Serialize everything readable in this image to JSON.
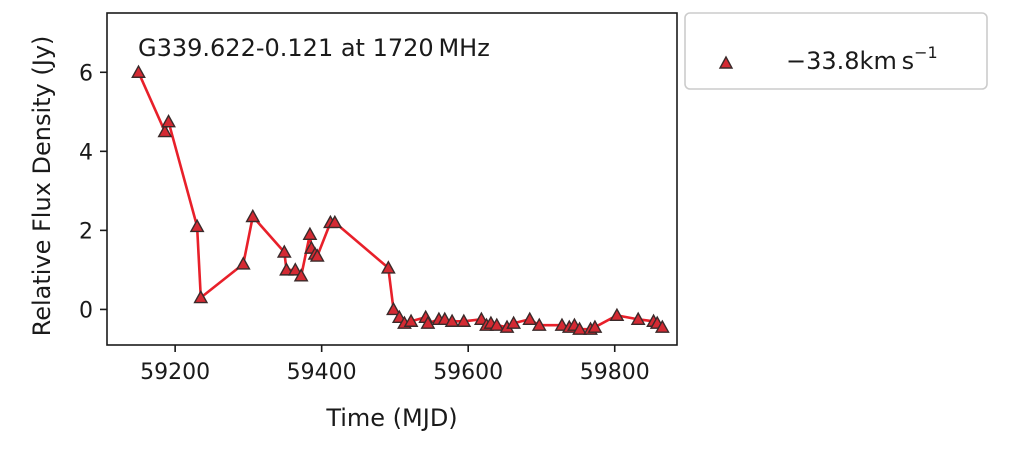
{
  "chart_data": {
    "type": "line",
    "title": "",
    "annotation": "G339.622-0.121 at 1720 MHz",
    "xlabel": "Time (MJD)",
    "ylabel": "Relative Flux Density (Jy)",
    "xlim": [
      59107,
      59885
    ],
    "ylim": [
      -0.9,
      7.5
    ],
    "xticks": [
      59200,
      59400,
      59600,
      59800
    ],
    "xtick_labels": [
      "59200",
      "59400",
      "59600",
      "59800"
    ],
    "yticks": [
      0,
      2,
      4,
      6
    ],
    "ytick_labels": [
      "0",
      "2",
      "4",
      "6"
    ],
    "grid": false,
    "legend_position": "outside-right-top",
    "series": [
      {
        "name": "−33.8km s⁻¹",
        "legend_main": "−33.8km s",
        "legend_sup": "−1",
        "marker": "triangle",
        "line_color": "#e8202a",
        "marker_fill": "#d42a33",
        "marker_edge": "#3a2a2a",
        "x": [
          59150,
          59186,
          59191,
          59230,
          59235,
          59293,
          59306,
          59349,
          59352,
          59364,
          59372,
          59384,
          59386,
          59391,
          59394,
          59412,
          59418,
          59491,
          59498,
          59506,
          59513,
          59522,
          59542,
          59545,
          59560,
          59568,
          59578,
          59594,
          59618,
          59625,
          59631,
          59639,
          59653,
          59662,
          59684,
          59697,
          59728,
          59738,
          59745,
          59752,
          59767,
          59773,
          59803,
          59832,
          59853,
          59858,
          59865
        ],
        "y": [
          6.0,
          4.5,
          4.75,
          2.1,
          0.3,
          1.15,
          2.35,
          1.45,
          1.0,
          1.0,
          0.85,
          1.9,
          1.55,
          1.4,
          1.35,
          2.2,
          2.2,
          1.05,
          0.0,
          -0.2,
          -0.35,
          -0.3,
          -0.2,
          -0.35,
          -0.25,
          -0.25,
          -0.3,
          -0.3,
          -0.25,
          -0.4,
          -0.35,
          -0.4,
          -0.45,
          -0.35,
          -0.25,
          -0.4,
          -0.4,
          -0.45,
          -0.4,
          -0.5,
          -0.5,
          -0.45,
          -0.15,
          -0.25,
          -0.3,
          -0.35,
          -0.45
        ]
      }
    ]
  }
}
